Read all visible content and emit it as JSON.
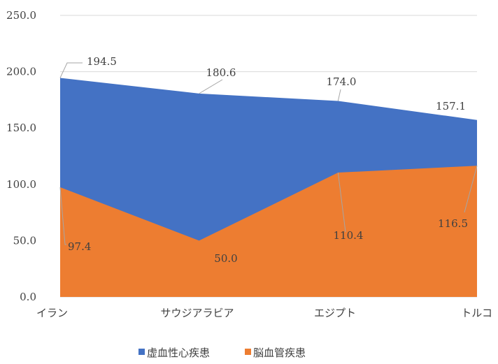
{
  "chart_data": {
    "type": "area",
    "categories": [
      "イラン",
      "サウジアラビア",
      "エジプト",
      "トルコ"
    ],
    "series": [
      {
        "name": "虚血性心疾患",
        "values": [
          194.5,
          180.6,
          174.0,
          157.1
        ],
        "color": "#4472c4"
      },
      {
        "name": "脳血管疾患",
        "values": [
          97.4,
          50.0,
          110.4,
          116.5
        ],
        "color": "#ed7d31"
      }
    ],
    "y_ticks": [
      "0.0",
      "50.0",
      "100.0",
      "150.0",
      "200.0",
      "250.0"
    ],
    "ylim": [
      0,
      250
    ],
    "grid": true,
    "legend_position": "bottom",
    "data_labels": {
      "series0": [
        "194.5",
        "180.6",
        "174.0",
        "157.1"
      ],
      "series1": [
        "97.4",
        "50.0",
        "110.4",
        "116.5"
      ]
    }
  }
}
